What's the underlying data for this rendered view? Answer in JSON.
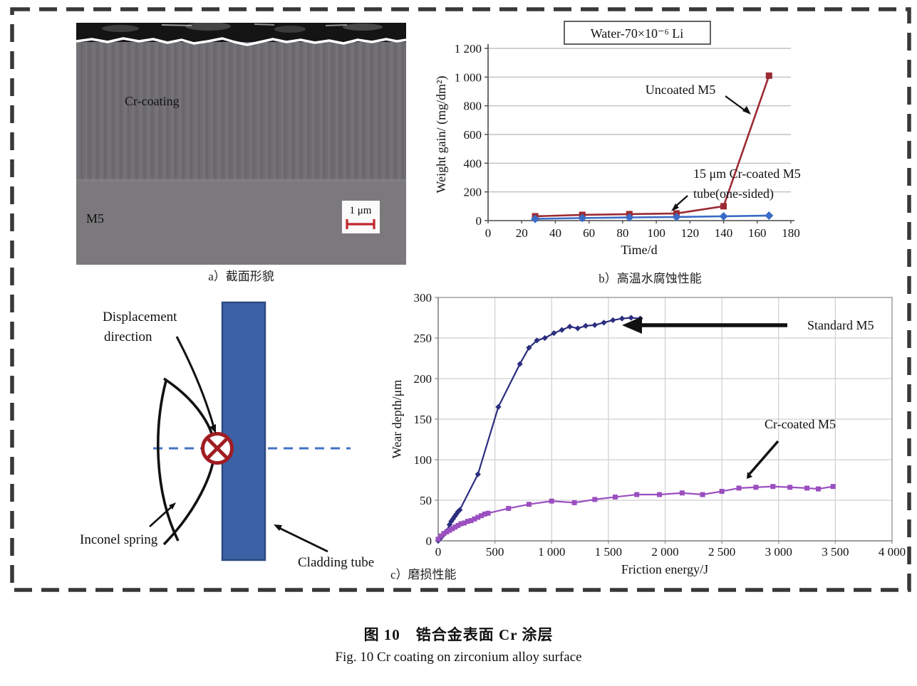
{
  "figure": {
    "caption_zh": "图 10　锆合金表面 Cr 涂层",
    "caption_en": "Fig. 10   Cr coating on zirconium alloy surface"
  },
  "panel_a": {
    "caption": "a）截面形貌",
    "coating_label": "Cr-coating",
    "substrate_label": "M5",
    "scale_bar_label": "1 μm",
    "scale_bar_color": "#c1272d"
  },
  "panel_b": {
    "caption": "b）高温水腐蚀性能"
  },
  "panel_c": {
    "caption": "c）磨损性能"
  },
  "diagram": {
    "labels": {
      "displacement_line1": "Displacement",
      "displacement_line2": "direction",
      "spring": "Inconel spring",
      "tube": "Cladding tube"
    },
    "tube_color": "#3c61a5",
    "symbol_color": "#a01d23",
    "dashed_line_color": "#4472c4"
  },
  "chart_data": [
    {
      "id": "corrosion-chart",
      "type": "line",
      "title": "Water-70×10⁻⁶ Li",
      "xlabel": "Time/d",
      "ylabel": "Weight gain/ (mg/dm²)",
      "xlim": [
        0,
        180
      ],
      "ylim": [
        0,
        1200
      ],
      "grid": "horizontal",
      "legend_position": "none",
      "xticks": [
        0,
        20,
        40,
        60,
        80,
        100,
        120,
        140,
        160,
        180
      ],
      "xtick_labels": [
        "0",
        "20",
        "40",
        "60",
        "80",
        "100",
        "120",
        "140",
        "160",
        "180"
      ],
      "yticks": [
        0,
        200,
        400,
        600,
        800,
        1000,
        1200
      ],
      "ytick_labels": [
        "0",
        "200",
        "400",
        "600",
        "800",
        "1 000",
        "1 200"
      ],
      "series": [
        {
          "name": "Uncoated M5",
          "color": "#9c2a33",
          "marker": "square",
          "x": [
            28,
            56,
            84,
            112,
            140,
            167
          ],
          "y": [
            30,
            40,
            45,
            50,
            100,
            1010
          ]
        },
        {
          "name": "15 μm Cr-coated M5 tube(one-sided)",
          "color": "#3a6bc7",
          "marker": "diamond",
          "x": [
            28,
            56,
            84,
            112,
            140,
            167
          ],
          "y": [
            12,
            18,
            22,
            25,
            30,
            35
          ]
        }
      ],
      "annotations": {
        "uncoated": "Uncoated M5",
        "coated_line1": "15 μm Cr-coated M5",
        "coated_line2": "tube(one-sided)"
      }
    },
    {
      "id": "wear-chart",
      "type": "line",
      "title": "",
      "xlabel": "Friction energy/J",
      "ylabel": "Wear depth/μm",
      "xlim": [
        0,
        4000
      ],
      "ylim": [
        0,
        300
      ],
      "grid": "both",
      "legend_position": "none",
      "xticks": [
        0,
        500,
        1000,
        1500,
        2000,
        2500,
        3000,
        3500,
        4000
      ],
      "xtick_labels": [
        "0",
        "500",
        "1 000",
        "1 500",
        "2 000",
        "2 500",
        "3 000",
        "3 500",
        "4 000"
      ],
      "yticks": [
        0,
        50,
        100,
        150,
        200,
        250,
        300
      ],
      "ytick_labels": [
        "0",
        "50",
        "100",
        "150",
        "200",
        "250",
        "300"
      ],
      "series": [
        {
          "name": "Standard M5",
          "color": "#2b2d7e",
          "marker": "diamond",
          "x": [
            0,
            25,
            50,
            75,
            100,
            115,
            130,
            145,
            160,
            175,
            190,
            350,
            530,
            720,
            800,
            870,
            940,
            1020,
            1090,
            1160,
            1230,
            1300,
            1380,
            1460,
            1540,
            1620,
            1700,
            1780
          ],
          "y": [
            0,
            4,
            8,
            12,
            20,
            24,
            27,
            30,
            33,
            36,
            38,
            82,
            165,
            218,
            238,
            247,
            250,
            256,
            260,
            264,
            262,
            265,
            266,
            269,
            272,
            274,
            275,
            274
          ]
        },
        {
          "name": "Cr-coated M5",
          "color": "#9b4fc0",
          "marker": "square",
          "x": [
            0,
            25,
            50,
            75,
            100,
            125,
            150,
            175,
            200,
            230,
            260,
            290,
            320,
            350,
            380,
            410,
            440,
            620,
            800,
            1000,
            1200,
            1380,
            1560,
            1750,
            1950,
            2150,
            2330,
            2500,
            2650,
            2800,
            2950,
            3100,
            3250,
            3350,
            3480
          ],
          "y": [
            2,
            6,
            9,
            11,
            13,
            15,
            17,
            19,
            21,
            22,
            24,
            25,
            27,
            29,
            31,
            33,
            34,
            40,
            45,
            49,
            47,
            51,
            54,
            57,
            57,
            59,
            57,
            61,
            65,
            66,
            67,
            66,
            65,
            64,
            67
          ]
        }
      ],
      "annotations": {
        "standard": "Standard M5",
        "coated": "Cr-coated M5"
      }
    }
  ]
}
